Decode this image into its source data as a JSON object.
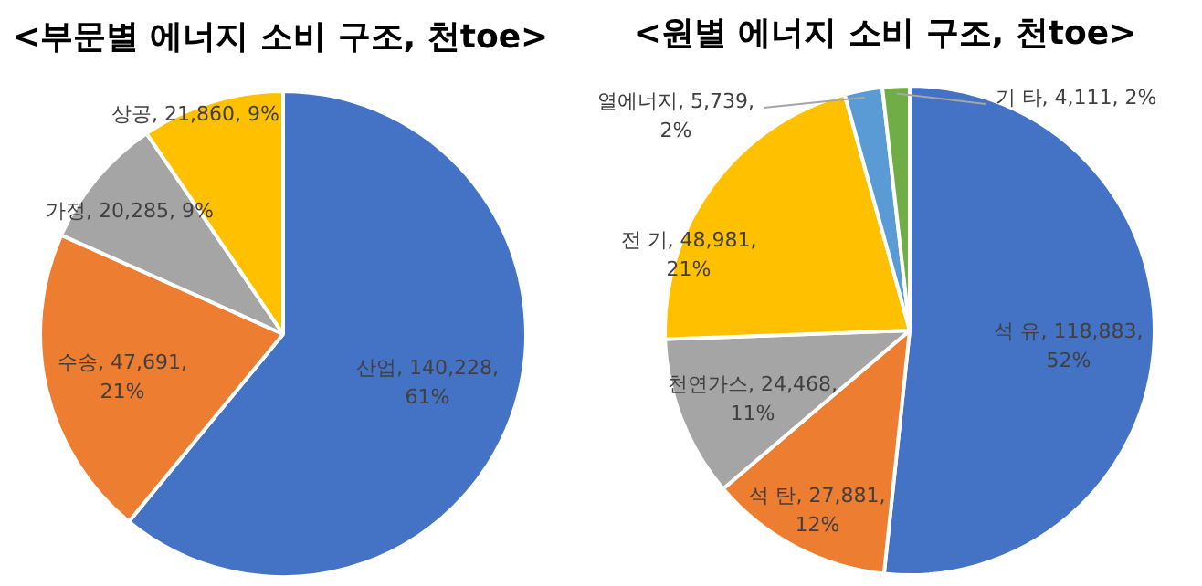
{
  "chart_data": [
    {
      "type": "pie",
      "title": "<부문별 에너지 소비 구조, 천toe>",
      "categories": [
        "산업",
        "수송",
        "가정",
        "상공"
      ],
      "values": [
        140228,
        47691,
        20285,
        21860
      ],
      "colors": [
        "#4472c4",
        "#ed7d31",
        "#a5a5a5",
        "#ffc000"
      ],
      "value_labels": [
        "140,228,\n61%",
        "47,691,\n21%",
        "20,285, 9%",
        "21,860, 9%"
      ]
    },
    {
      "type": "pie",
      "title": "<원별 에너지 소비 구조, 천toe>",
      "categories": [
        "석 유",
        "석 탄",
        "천연가스",
        "전 기",
        "열에너지",
        "기 타"
      ],
      "values": [
        118883,
        27881,
        24468,
        48981,
        5739,
        4111
      ],
      "colors": [
        "#4472c4",
        "#ed7d31",
        "#a5a5a5",
        "#ffc000",
        "#5b9bd5",
        "#70ad47"
      ],
      "value_labels": [
        "118,883,\n52%",
        "27,881,\n12%",
        "24,468,\n11%",
        "48,981,\n21%",
        "5,739,\n2%",
        "4,111, 2%"
      ]
    }
  ]
}
